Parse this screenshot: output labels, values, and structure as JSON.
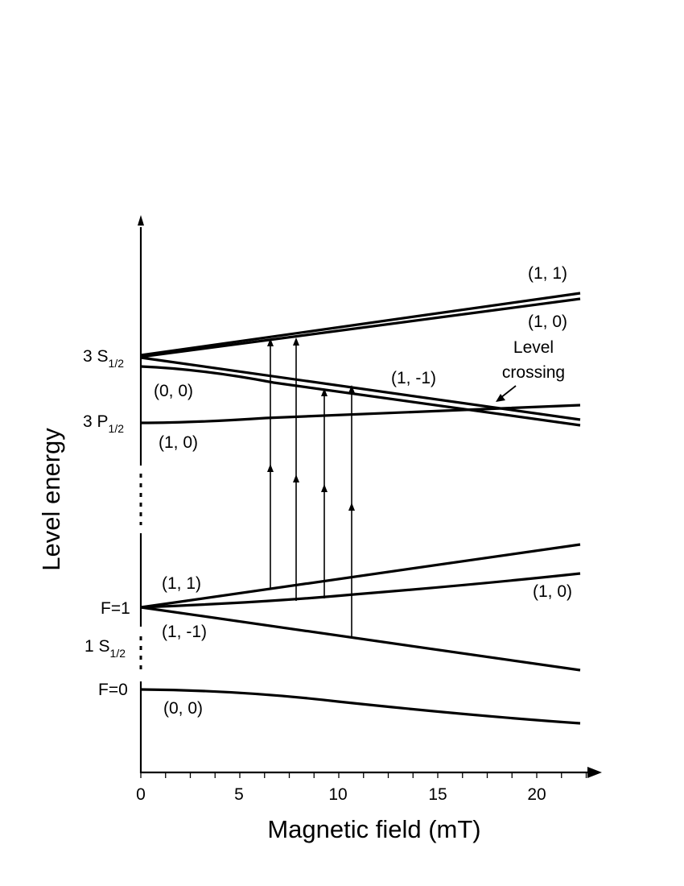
{
  "axes": {
    "x_title": "Magnetic field (mT)",
    "y_title": "Level energy",
    "x_ticks": [
      "0",
      "5",
      "10",
      "15",
      "20"
    ]
  },
  "state_labels": {
    "s3_main": "3 S",
    "s3_sub": "1/2",
    "p3_main": "3 P",
    "p3_sub": "1/2",
    "f1": "F=1",
    "s1_main": "1 S",
    "s1_sub": "1/2",
    "f0": "F=0"
  },
  "level_labels": {
    "s3_11": "(1,  1)",
    "s3_10": "(1,  0)",
    "s3_1m1": "(1, -1)",
    "s3_00": "(0,  0)",
    "p3_10": "(1,  0)",
    "g_11": "(1,  1)",
    "g_10": "(1,  0)",
    "g_1m1": "(1, -1)",
    "g_00": "(0,  0)"
  },
  "annotation": {
    "line1": "Level",
    "line2": "crossing"
  },
  "transitions_mT": [
    6.5,
    7.8,
    9.3,
    10.6
  ]
}
